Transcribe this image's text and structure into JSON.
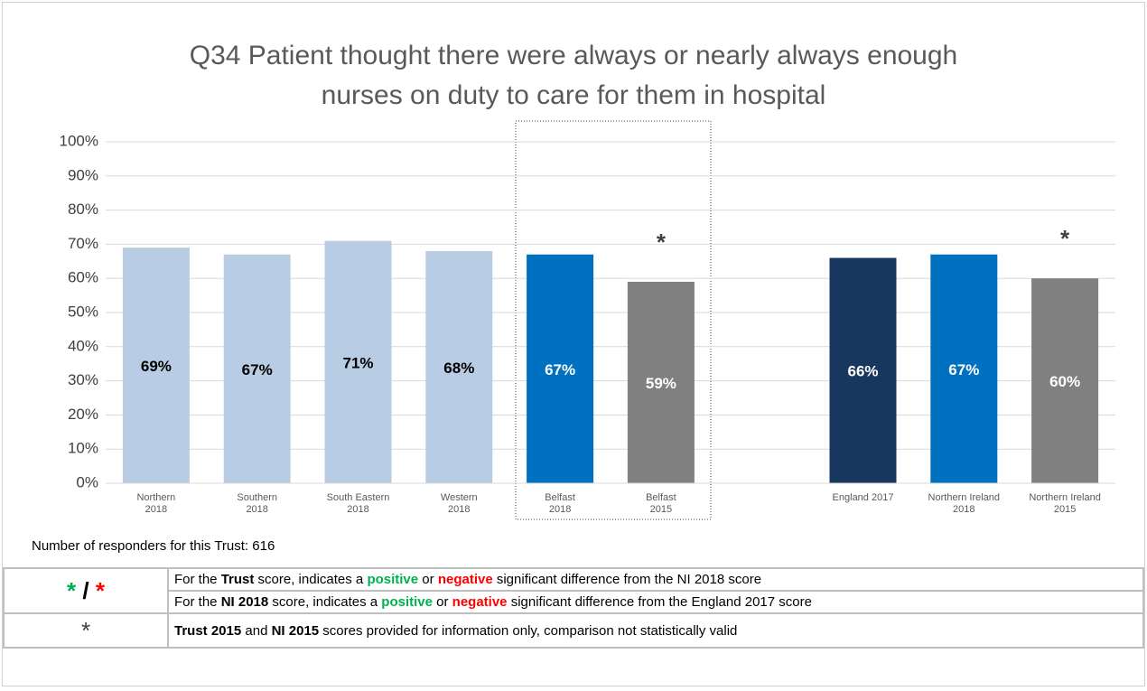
{
  "chart_data": {
    "type": "bar",
    "title": "Q34 Patient thought there were always or nearly always enough\nnurses on duty to care for them in hospital",
    "categories": [
      "Northern\n2018",
      "Southern\n2018",
      "South Eastern\n2018",
      "Western\n2018",
      "Belfast\n2018",
      "Belfast\n2015",
      null,
      "England 2017",
      "Northern Ireland\n2018",
      "Northern Ireland\n2015"
    ],
    "values": [
      69,
      67,
      71,
      68,
      67,
      59,
      null,
      66,
      67,
      60
    ],
    "value_labels": [
      "69%",
      "67%",
      "71%",
      "68%",
      "67%",
      "59%",
      null,
      "66%",
      "67%",
      "60%"
    ],
    "colors": [
      "#b8cce4",
      "#b8cce4",
      "#b8cce4",
      "#b8cce4",
      "#0070c0",
      "#808080",
      null,
      "#17375e",
      "#0070c0",
      "#808080"
    ],
    "label_colors": [
      "#000000",
      "#000000",
      "#000000",
      "#000000",
      "#ffffff",
      "#ffffff",
      null,
      "#ffffff",
      "#ffffff",
      "#ffffff"
    ],
    "significance": [
      null,
      null,
      null,
      null,
      null,
      "*",
      null,
      null,
      null,
      "*"
    ],
    "ylim": [
      0,
      100
    ],
    "yticks": [
      {
        "value": 0,
        "label": "0%"
      },
      {
        "value": 10,
        "label": "10%"
      },
      {
        "value": 20,
        "label": "20%"
      },
      {
        "value": 30,
        "label": "30%"
      },
      {
        "value": 40,
        "label": "40%"
      },
      {
        "value": 50,
        "label": "50%"
      },
      {
        "value": 60,
        "label": "60%"
      },
      {
        "value": 70,
        "label": "70%"
      },
      {
        "value": 80,
        "label": "80%"
      },
      {
        "value": 90,
        "label": "90%"
      },
      {
        "value": 100,
        "label": "100%"
      }
    ],
    "grid": true
  },
  "footer": "Number of responders for this Trust: 616",
  "legend_table": {
    "symbols": [
      [
        {
          "text": "*",
          "style": "positive"
        },
        {
          "text": " / ",
          "style": "bold"
        },
        {
          "text": "*",
          "style": "negative"
        }
      ],
      [
        {
          "text": "*",
          "style": "plain"
        }
      ]
    ],
    "rows": [
      [
        {
          "text": "For the ",
          "style": "plain"
        },
        {
          "text": "Trust",
          "style": "bold"
        },
        {
          "text": " score, indicates a ",
          "style": "plain"
        },
        {
          "text": "positive",
          "style": "positive"
        },
        {
          "text": " or ",
          "style": "plain"
        },
        {
          "text": "negative",
          "style": "negative"
        },
        {
          "text": " significant difference from the NI 2018 score",
          "style": "plain"
        }
      ],
      [
        {
          "text": "For the ",
          "style": "plain"
        },
        {
          "text": "NI 2018",
          "style": "bold"
        },
        {
          "text": " score, indicates a ",
          "style": "plain"
        },
        {
          "text": "positive",
          "style": "positive"
        },
        {
          "text": " or ",
          "style": "plain"
        },
        {
          "text": "negative",
          "style": "negative"
        },
        {
          "text": " significant difference from the England 2017 score",
          "style": "plain"
        }
      ],
      [
        {
          "text": "Trust 2015",
          "style": "bold"
        },
        {
          "text": " and  ",
          "style": "plain"
        },
        {
          "text": "NI 2015",
          "style": "bold"
        },
        {
          "text": " scores provided for information only, comparison not statistically valid",
          "style": "plain"
        }
      ]
    ]
  }
}
